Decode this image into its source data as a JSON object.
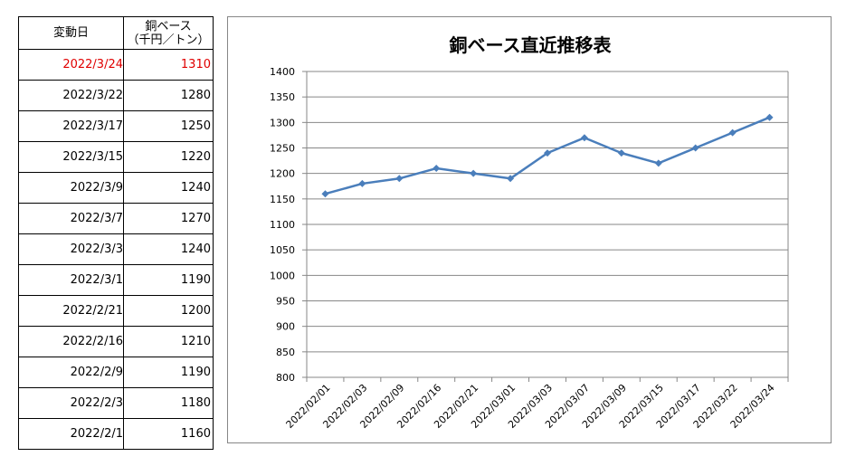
{
  "table": {
    "headers": {
      "date": "変動日",
      "value_line1": "銅ベース",
      "value_line2": "（千円／トン）"
    },
    "rows": [
      {
        "date": "2022/3/24",
        "value": "1310",
        "highlight": true
      },
      {
        "date": "2022/3/22",
        "value": "1280"
      },
      {
        "date": "2022/3/17",
        "value": "1250"
      },
      {
        "date": "2022/3/15",
        "value": "1220"
      },
      {
        "date": "2022/3/9",
        "value": "1240"
      },
      {
        "date": "2022/3/7",
        "value": "1270"
      },
      {
        "date": "2022/3/3",
        "value": "1240"
      },
      {
        "date": "2022/3/1",
        "value": "1190"
      },
      {
        "date": "2022/2/21",
        "value": "1200"
      },
      {
        "date": "2022/2/16",
        "value": "1210"
      },
      {
        "date": "2022/2/9",
        "value": "1190"
      },
      {
        "date": "2022/2/3",
        "value": "1180"
      },
      {
        "date": "2022/2/1",
        "value": "1160"
      }
    ],
    "highlight_color": "#e00000"
  },
  "chart_data": {
    "type": "line",
    "title": "銅ベース直近推移表",
    "xlabel": "",
    "ylabel": "",
    "categories": [
      "2022/02/01",
      "2022/02/03",
      "2022/02/09",
      "2022/02/16",
      "2022/02/21",
      "2022/03/01",
      "2022/03/03",
      "2022/03/07",
      "2022/03/09",
      "2022/03/15",
      "2022/03/17",
      "2022/03/22",
      "2022/03/24"
    ],
    "series": [
      {
        "values": [
          1160,
          1180,
          1190,
          1210,
          1200,
          1190,
          1240,
          1270,
          1240,
          1220,
          1250,
          1280,
          1310
        ]
      }
    ],
    "ylim": [
      800,
      1400
    ],
    "yticks": [
      800,
      850,
      900,
      950,
      1000,
      1050,
      1100,
      1150,
      1200,
      1250,
      1300,
      1350,
      1400
    ],
    "grid": true,
    "legend": "none",
    "line_color": "#4a7ebb",
    "grid_color": "#878787"
  }
}
